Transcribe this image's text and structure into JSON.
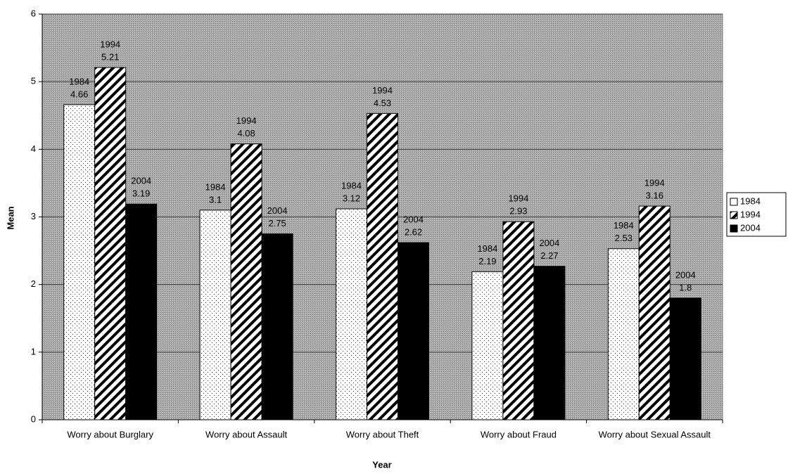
{
  "chart_data": {
    "type": "bar",
    "x_label": "Year",
    "y_label": "Mean",
    "categories": [
      "Worry about Burglary",
      "Worry about Assault",
      "Worry about Theft",
      "Worry about Fraud",
      "Worry about Sexual Assault"
    ],
    "series": [
      {
        "name": "1984",
        "color": "#ffffff",
        "pattern": "dots",
        "values": [
          4.66,
          3.1,
          3.12,
          2.19,
          2.53
        ]
      },
      {
        "name": "1994",
        "color": "#ffffff",
        "pattern": "hatch",
        "values": [
          5.21,
          4.08,
          4.53,
          2.93,
          3.16
        ]
      },
      {
        "name": "2004",
        "color": "#000000",
        "pattern": "solid",
        "values": [
          3.19,
          2.75,
          2.62,
          2.27,
          1.8
        ]
      }
    ],
    "ylim": [
      0,
      6
    ],
    "yticks": [
      0,
      1,
      2,
      3,
      4,
      5,
      6
    ],
    "grid": true,
    "legend": "right"
  }
}
